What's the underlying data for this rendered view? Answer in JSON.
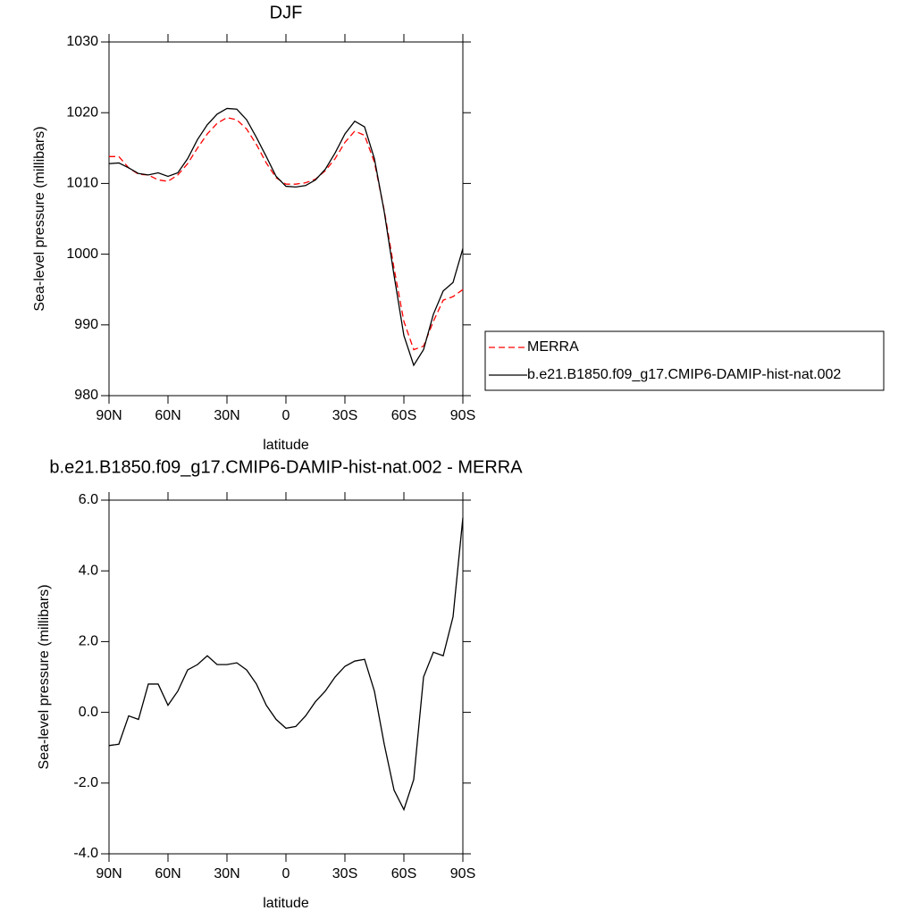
{
  "chart_data": [
    {
      "type": "line",
      "title": "DJF",
      "x_label": "latitude",
      "y_label": "Sea-level pressure (millibars)",
      "x": [
        90,
        85,
        80,
        75,
        70,
        65,
        60,
        55,
        50,
        45,
        40,
        35,
        30,
        25,
        20,
        15,
        10,
        5,
        0,
        -5,
        -10,
        -15,
        -20,
        -25,
        -30,
        -35,
        -40,
        -45,
        -50,
        -55,
        -60,
        -65,
        -70,
        -75,
        -80,
        -85,
        -90
      ],
      "series": [
        {
          "name": "MERRA",
          "color": "#ff0000",
          "line_style": "dashed",
          "values": [
            1013.8,
            1013.8,
            1012.2,
            1011.3,
            1011.2,
            1010.5,
            1010.3,
            1011.2,
            1012.8,
            1015.0,
            1017.0,
            1018.5,
            1019.3,
            1019.0,
            1017.7,
            1015.5,
            1012.9,
            1010.8,
            1009.9,
            1009.9,
            1010.1,
            1010.6,
            1011.8,
            1013.5,
            1015.8,
            1017.4,
            1016.8,
            1013.0,
            1006.2,
            998.0,
            990.5,
            986.5,
            987.0,
            990.5,
            993.5,
            994.0,
            995.0
          ]
        },
        {
          "name": "b.e21.B1850.f09_g17.CMIP6-DAMIP-hist-nat.002",
          "color": "#000000",
          "line_style": "solid",
          "values": [
            1012.8,
            1012.9,
            1012.2,
            1011.4,
            1011.2,
            1011.5,
            1011.0,
            1011.5,
            1013.5,
            1016.2,
            1018.3,
            1019.8,
            1020.6,
            1020.5,
            1019.0,
            1016.5,
            1013.8,
            1011.0,
            1009.6,
            1009.5,
            1009.7,
            1010.5,
            1012.0,
            1014.3,
            1017.0,
            1018.8,
            1018.0,
            1013.5,
            1006.0,
            997.0,
            988.5,
            984.3,
            986.5,
            991.5,
            994.8,
            996.0,
            1000.8
          ]
        }
      ],
      "xlim": [
        90,
        -90
      ],
      "xticks": [
        {
          "value": 90,
          "label": "90N"
        },
        {
          "value": 60,
          "label": "60N"
        },
        {
          "value": 30,
          "label": "30N"
        },
        0,
        {
          "value": -30,
          "label": "30S"
        },
        {
          "value": -60,
          "label": "60S"
        },
        {
          "value": -90,
          "label": "90S"
        }
      ],
      "ylim": [
        980,
        1030
      ],
      "yticks": [
        980,
        990,
        1000,
        1010,
        1020,
        1030
      ],
      "legend": "right"
    },
    {
      "type": "line",
      "title": "b.e21.B1850.f09_g17.CMIP6-DAMIP-hist-nat.002 - MERRA",
      "x_label": "latitude",
      "y_label": "Sea-level pressure (millibars)",
      "x": [
        90,
        85,
        80,
        75,
        70,
        65,
        60,
        55,
        50,
        45,
        40,
        35,
        30,
        25,
        20,
        15,
        10,
        5,
        0,
        -5,
        -10,
        -15,
        -20,
        -25,
        -30,
        -35,
        -40,
        -45,
        -50,
        -55,
        -60,
        -65,
        -70,
        -75,
        -80,
        -85,
        -90
      ],
      "values": [
        -0.94,
        -0.9,
        -0.1,
        -0.2,
        0.8,
        0.8,
        0.2,
        0.6,
        1.2,
        1.35,
        1.6,
        1.35,
        1.35,
        1.4,
        1.2,
        0.8,
        0.2,
        -0.2,
        -0.45,
        -0.4,
        -0.1,
        0.3,
        0.6,
        1.0,
        1.3,
        1.45,
        1.5,
        0.6,
        -0.9,
        -2.2,
        -2.75,
        -1.9,
        1.0,
        1.7,
        1.6,
        2.7,
        5.5
      ],
      "color": "#000000",
      "xlim": [
        90,
        -90
      ],
      "xticks": [
        {
          "value": 90,
          "label": "90N"
        },
        {
          "value": 60,
          "label": "60N"
        },
        {
          "value": 30,
          "label": "30N"
        },
        0,
        {
          "value": -30,
          "label": "30S"
        },
        {
          "value": -60,
          "label": "60S"
        },
        {
          "value": -90,
          "label": "90S"
        }
      ],
      "ylim": [
        -4,
        6
      ],
      "yticks": [
        {
          "value": -4,
          "label": "-4.0"
        },
        {
          "value": -2,
          "label": "-2.0"
        },
        {
          "value": 0,
          "label": "0.0"
        },
        {
          "value": 2,
          "label": "2.0"
        },
        {
          "value": 4,
          "label": "4.0"
        },
        {
          "value": 6,
          "label": "6.0"
        }
      ]
    }
  ]
}
